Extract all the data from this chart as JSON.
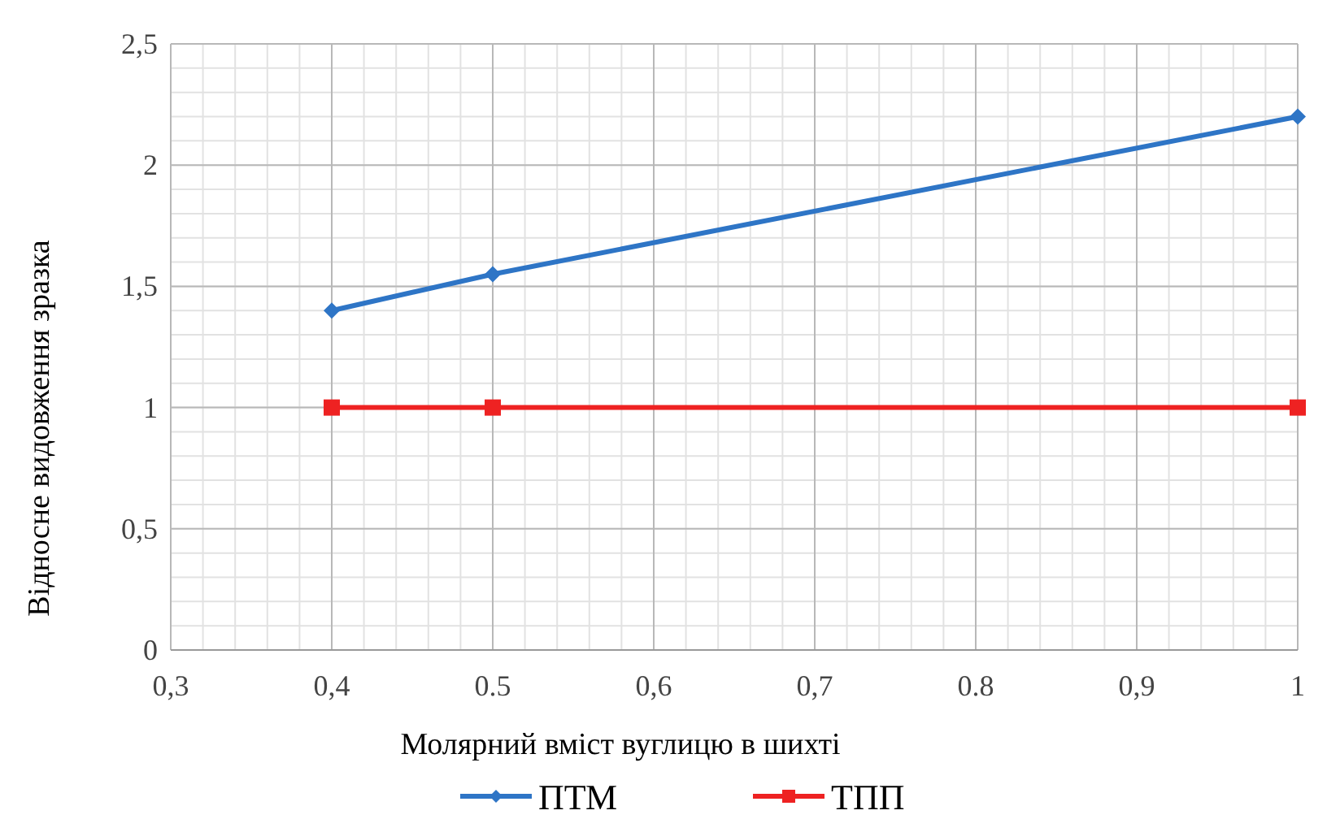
{
  "chart_data": {
    "type": "line",
    "xlabel": "Молярний вміст вуглицю в шихті",
    "ylabel": "Відносне видовження зразка",
    "xlim": [
      0.3,
      1
    ],
    "xticks": [
      {
        "value": 0.3,
        "label": "0,3"
      },
      {
        "value": 0.4,
        "label": "0,4"
      },
      {
        "value": 0.5,
        "label": "0.5"
      },
      {
        "value": 0.6,
        "label": "0,6"
      },
      {
        "value": 0.7,
        "label": "0,7"
      },
      {
        "value": 0.8,
        "label": "0.8"
      },
      {
        "value": 0.9,
        "label": "0,9"
      },
      1
    ],
    "ylim": [
      0,
      2.5
    ],
    "yticks": [
      0,
      {
        "value": 0.5,
        "label": "0,5"
      },
      1,
      {
        "value": 1.5,
        "label": "1,5"
      },
      2,
      {
        "value": 2.5,
        "label": "2,5"
      }
    ],
    "x": [
      0.4,
      0.5,
      1
    ],
    "grid": true,
    "legend": "bottom",
    "series": [
      {
        "name": "ПТМ",
        "color": "#2e75c6",
        "values": [
          1.4,
          1.55,
          2.2
        ],
        "marker": "diamond"
      },
      {
        "name": "ТПП",
        "color": "#ee2222",
        "values": [
          1,
          1,
          1
        ],
        "marker": "square"
      }
    ]
  }
}
